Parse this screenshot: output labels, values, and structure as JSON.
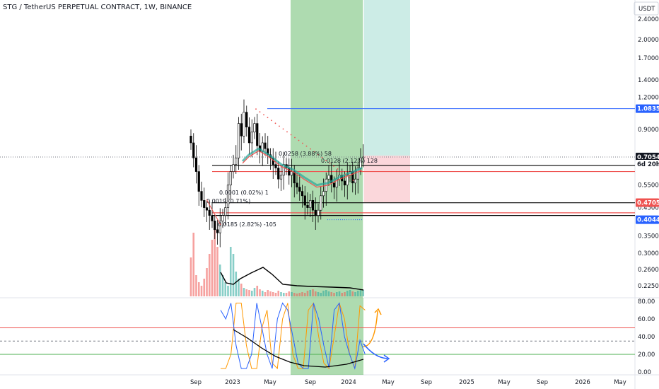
{
  "title": "STG / TetherUS PERPETUAL CONTRACT, 1W, BINANCE",
  "currency": "USDT",
  "colors": {
    "up": "#26a69a",
    "down": "#000000",
    "bg_green": "#4caf50",
    "bg_teal": "#7fcfc1",
    "red": "#ef5350",
    "blue": "#2962ff",
    "orange": "#ff9800",
    "grid": "#f0f3fa"
  },
  "chart_data": [
    {
      "type": "candlestick",
      "price_scale": "log",
      "ylim": [
        0.21,
        2.6
      ],
      "y_ticks": [
        "2.4000",
        "2.0000",
        "1.7000",
        "1.4000",
        "1.2000",
        "0.9000",
        "0.7000",
        "0.5500",
        "0.4500",
        "0.3500",
        "0.3000",
        "0.2600",
        "0.2250"
      ],
      "y_tick_values": [
        2.4,
        2.0,
        1.7,
        1.4,
        1.2,
        0.9,
        0.7,
        0.55,
        0.45,
        0.35,
        0.3,
        0.26,
        0.225
      ],
      "x_ticks": [
        "Sep",
        "2023",
        "May",
        "Sep",
        "2024",
        "May",
        "Sep",
        "2025",
        "May",
        "Sep",
        "2026",
        "May"
      ],
      "price_badges": [
        {
          "label": "1.0835",
          "value": 1.0835,
          "color": "#2962ff"
        },
        {
          "label": "0.7058",
          "value": 0.7058,
          "color": "#787b86"
        },
        {
          "label": "0.7054",
          "value": 0.7054,
          "color": "#131722"
        },
        {
          "label": "6d 20h",
          "value": 0.672,
          "color": "#131722"
        },
        {
          "label": "0.4705",
          "value": 0.4705,
          "color": "#ef5350"
        },
        {
          "label": "0.4044",
          "value": 0.4044,
          "color": "#2962ff"
        }
      ],
      "horizontal_levels": [
        {
          "value": 1.0835,
          "color": "#2962ff"
        },
        {
          "value": 0.655,
          "color": "#000000"
        },
        {
          "value": 0.62,
          "color": "#ef5350"
        },
        {
          "value": 0.47,
          "color": "#000000"
        },
        {
          "value": 0.43,
          "color": "#ef5350"
        },
        {
          "value": 0.42,
          "color": "#000000"
        }
      ],
      "annotations": [
        "0.0258 (3.88%) 58",
        "0.0128 (2.12%) 128",
        "0.0001 (0.02%) 1",
        "0.0019 (0.71%)",
        "0.0185 (2.82%) -105"
      ],
      "series": [
        {
          "name": "close",
          "values": [
            0.8,
            0.7,
            0.62,
            0.52,
            0.48,
            0.45,
            0.44,
            0.42,
            0.4,
            0.37,
            0.36,
            0.4,
            0.42,
            0.45,
            0.55,
            0.62,
            0.66,
            0.7,
            0.95,
            0.85,
            1.05,
            0.92,
            0.8,
            0.88,
            0.95,
            0.78,
            0.74,
            0.8,
            0.76,
            0.72,
            0.7,
            0.66,
            0.64,
            0.58,
            0.6,
            0.66,
            0.64,
            0.6,
            0.62,
            0.56,
            0.54,
            0.52,
            0.5,
            0.46,
            0.45,
            0.48,
            0.44,
            0.42,
            0.44,
            0.5,
            0.52,
            0.58,
            0.6,
            0.56,
            0.54,
            0.58,
            0.6,
            0.57,
            0.55,
            0.6,
            0.62,
            0.56,
            0.58,
            0.64,
            0.7,
            0.7054
          ]
        }
      ]
    },
    {
      "type": "line",
      "name": "oscillator",
      "ylim": [
        0,
        80
      ],
      "y_ticks": [
        "80.00",
        "60.00",
        "40.00",
        "20.00",
        "0.00"
      ],
      "levels": [
        {
          "value": 50,
          "color": "#ef5350"
        },
        {
          "value": 35,
          "color": "#787b86"
        },
        {
          "value": 20,
          "color": "#4caf50"
        }
      ],
      "series": [
        {
          "name": "orange",
          "color": "#ff9800",
          "values": [
            4,
            4,
            20,
            78,
            78,
            30,
            4,
            4,
            50,
            70,
            10,
            4,
            60,
            78,
            20,
            4,
            4,
            70,
            78,
            40,
            10,
            4,
            40,
            78,
            60,
            20,
            4,
            75,
            70
          ]
        },
        {
          "name": "blue",
          "color": "#2962ff",
          "values": [
            70,
            60,
            78,
            30,
            4,
            4,
            20,
            78,
            50,
            20,
            4,
            60,
            78,
            70,
            40,
            10,
            4,
            4,
            78,
            60,
            30,
            5,
            70,
            78,
            40,
            20,
            4,
            36,
            20
          ]
        }
      ]
    }
  ]
}
